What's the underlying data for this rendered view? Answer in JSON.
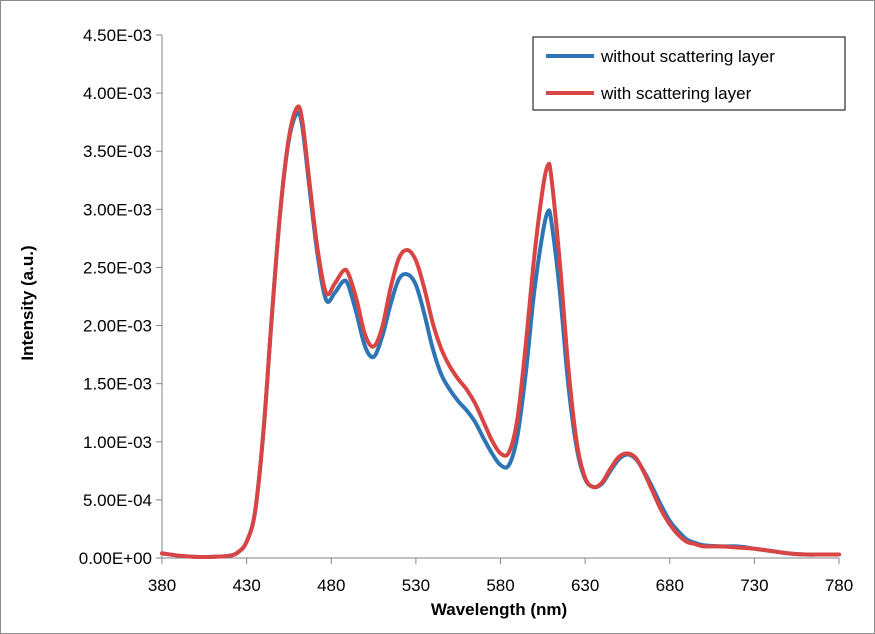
{
  "chart_data": {
    "type": "line",
    "title": "",
    "xlabel": "Wavelength (nm)",
    "ylabel": "Intensity (a.u.)",
    "xlim": [
      380,
      780
    ],
    "ylim": [
      0,
      0.0045
    ],
    "x_ticks": [
      "380",
      "430",
      "480",
      "530",
      "580",
      "630",
      "680",
      "730",
      "780"
    ],
    "y_ticks": [
      "0.00E+00",
      "5.00E-04",
      "1.00E-03",
      "1.50E-03",
      "2.00E-03",
      "2.50E-03",
      "3.00E-03",
      "3.50E-03",
      "4.00E-03",
      "4.50E-03"
    ],
    "grid": false,
    "legend_position": "top-right",
    "series": [
      {
        "name": "without scattering layer",
        "color": "#2e75b6",
        "points": [
          [
            380,
            4e-05
          ],
          [
            390,
            2e-05
          ],
          [
            400,
            1e-05
          ],
          [
            410,
            1e-05
          ],
          [
            420,
            2e-05
          ],
          [
            425,
            5e-05
          ],
          [
            430,
            0.00014
          ],
          [
            435,
            0.0004
          ],
          [
            440,
            0.0011
          ],
          [
            445,
            0.0021
          ],
          [
            450,
            0.003
          ],
          [
            455,
            0.0036
          ],
          [
            460,
            0.00383
          ],
          [
            463,
            0.0037
          ],
          [
            467,
            0.0032
          ],
          [
            472,
            0.0026
          ],
          [
            477,
            0.00222
          ],
          [
            482,
            0.00228
          ],
          [
            487,
            0.00238
          ],
          [
            490,
            0.00235
          ],
          [
            495,
            0.0021
          ],
          [
            500,
            0.00182
          ],
          [
            505,
            0.00173
          ],
          [
            510,
            0.0019
          ],
          [
            515,
            0.00218
          ],
          [
            520,
            0.0024
          ],
          [
            525,
            0.00244
          ],
          [
            530,
            0.00235
          ],
          [
            535,
            0.0021
          ],
          [
            540,
            0.0018
          ],
          [
            545,
            0.00158
          ],
          [
            550,
            0.00145
          ],
          [
            555,
            0.00135
          ],
          [
            560,
            0.00127
          ],
          [
            565,
            0.00117
          ],
          [
            570,
            0.00103
          ],
          [
            575,
            0.0009
          ],
          [
            580,
            0.0008
          ],
          [
            585,
            0.0008
          ],
          [
            590,
            0.00105
          ],
          [
            595,
            0.0016
          ],
          [
            600,
            0.0023
          ],
          [
            605,
            0.0028
          ],
          [
            608,
            0.00298
          ],
          [
            610,
            0.0029
          ],
          [
            615,
            0.0023
          ],
          [
            620,
            0.0015
          ],
          [
            625,
            0.00095
          ],
          [
            630,
            0.00068
          ],
          [
            635,
            0.00061
          ],
          [
            640,
            0.00064
          ],
          [
            645,
            0.00075
          ],
          [
            650,
            0.00085
          ],
          [
            655,
            0.00089
          ],
          [
            660,
            0.00085
          ],
          [
            665,
            0.00074
          ],
          [
            670,
            0.0006
          ],
          [
            675,
            0.00045
          ],
          [
            680,
            0.00032
          ],
          [
            685,
            0.00023
          ],
          [
            690,
            0.00016
          ],
          [
            695,
            0.00013
          ],
          [
            700,
            0.00011
          ],
          [
            710,
            0.0001
          ],
          [
            720,
            0.0001
          ],
          [
            730,
            8e-05
          ],
          [
            740,
            6e-05
          ],
          [
            750,
            4e-05
          ],
          [
            760,
            3e-05
          ],
          [
            770,
            3e-05
          ],
          [
            780,
            3e-05
          ]
        ]
      },
      {
        "name": "with scattering layer",
        "color": "#d94545",
        "points": [
          [
            380,
            4e-05
          ],
          [
            390,
            2e-05
          ],
          [
            400,
            1e-05
          ],
          [
            410,
            1e-05
          ],
          [
            420,
            2e-05
          ],
          [
            425,
            5e-05
          ],
          [
            430,
            0.00014
          ],
          [
            435,
            0.0004
          ],
          [
            440,
            0.0011
          ],
          [
            445,
            0.0021
          ],
          [
            450,
            0.003
          ],
          [
            455,
            0.00362
          ],
          [
            460,
            0.00388
          ],
          [
            463,
            0.00375
          ],
          [
            467,
            0.00325
          ],
          [
            472,
            0.00265
          ],
          [
            477,
            0.00228
          ],
          [
            482,
            0.00236
          ],
          [
            487,
            0.00247
          ],
          [
            490,
            0.00245
          ],
          [
            495,
            0.00222
          ],
          [
            500,
            0.00192
          ],
          [
            505,
            0.00182
          ],
          [
            510,
            0.00198
          ],
          [
            515,
            0.00232
          ],
          [
            520,
            0.00258
          ],
          [
            525,
            0.00265
          ],
          [
            530,
            0.00256
          ],
          [
            535,
            0.00232
          ],
          [
            540,
            0.00202
          ],
          [
            545,
            0.0018
          ],
          [
            550,
            0.00165
          ],
          [
            555,
            0.00154
          ],
          [
            560,
            0.00145
          ],
          [
            565,
            0.00133
          ],
          [
            570,
            0.00117
          ],
          [
            575,
            0.00101
          ],
          [
            580,
            0.0009
          ],
          [
            585,
            0.00091
          ],
          [
            590,
            0.0012
          ],
          [
            595,
            0.00185
          ],
          [
            600,
            0.0026
          ],
          [
            605,
            0.00318
          ],
          [
            608,
            0.00338
          ],
          [
            610,
            0.00328
          ],
          [
            615,
            0.00255
          ],
          [
            620,
            0.00165
          ],
          [
            625,
            0.001
          ],
          [
            630,
            0.00069
          ],
          [
            635,
            0.00061
          ],
          [
            640,
            0.00065
          ],
          [
            645,
            0.00077
          ],
          [
            650,
            0.00087
          ],
          [
            655,
            0.0009
          ],
          [
            660,
            0.00086
          ],
          [
            665,
            0.00073
          ],
          [
            670,
            0.00057
          ],
          [
            675,
            0.00041
          ],
          [
            680,
            0.00029
          ],
          [
            685,
            0.0002
          ],
          [
            690,
            0.00014
          ],
          [
            695,
            0.00012
          ],
          [
            700,
            0.0001
          ],
          [
            710,
            0.0001
          ],
          [
            720,
            9e-05
          ],
          [
            730,
            8e-05
          ],
          [
            740,
            6e-05
          ],
          [
            750,
            4e-05
          ],
          [
            760,
            3e-05
          ],
          [
            770,
            3e-05
          ],
          [
            780,
            3e-05
          ]
        ]
      }
    ]
  }
}
